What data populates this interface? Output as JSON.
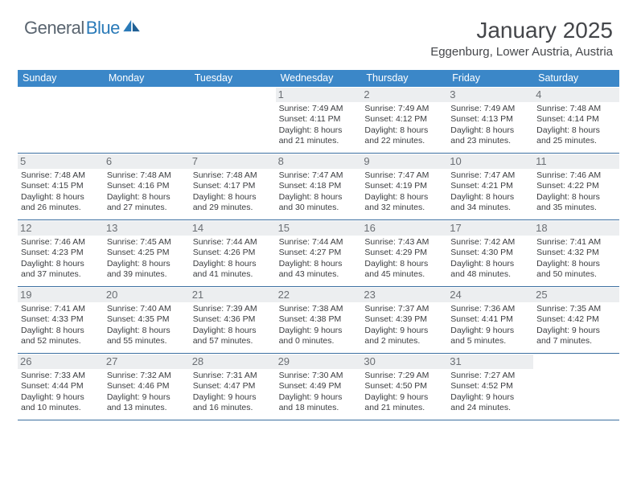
{
  "brand": {
    "name1": "General",
    "name2": "Blue",
    "color_gray": "#5a6570",
    "color_blue": "#2a7ab8"
  },
  "header": {
    "title": "January 2025",
    "location": "Eggenburg, Lower Austria, Austria"
  },
  "style": {
    "header_bg": "#3b87c8",
    "week_border": "#3b6fa0",
    "daynum_bg": "#eceef0",
    "text_color": "#3b3d40"
  },
  "day_names": [
    "Sunday",
    "Monday",
    "Tuesday",
    "Wednesday",
    "Thursday",
    "Friday",
    "Saturday"
  ],
  "weeks": [
    [
      {
        "n": "",
        "sr": "",
        "ss": "",
        "dl": ""
      },
      {
        "n": "",
        "sr": "",
        "ss": "",
        "dl": ""
      },
      {
        "n": "",
        "sr": "",
        "ss": "",
        "dl": ""
      },
      {
        "n": "1",
        "sr": "Sunrise: 7:49 AM",
        "ss": "Sunset: 4:11 PM",
        "dl": "Daylight: 8 hours and 21 minutes."
      },
      {
        "n": "2",
        "sr": "Sunrise: 7:49 AM",
        "ss": "Sunset: 4:12 PM",
        "dl": "Daylight: 8 hours and 22 minutes."
      },
      {
        "n": "3",
        "sr": "Sunrise: 7:49 AM",
        "ss": "Sunset: 4:13 PM",
        "dl": "Daylight: 8 hours and 23 minutes."
      },
      {
        "n": "4",
        "sr": "Sunrise: 7:48 AM",
        "ss": "Sunset: 4:14 PM",
        "dl": "Daylight: 8 hours and 25 minutes."
      }
    ],
    [
      {
        "n": "5",
        "sr": "Sunrise: 7:48 AM",
        "ss": "Sunset: 4:15 PM",
        "dl": "Daylight: 8 hours and 26 minutes."
      },
      {
        "n": "6",
        "sr": "Sunrise: 7:48 AM",
        "ss": "Sunset: 4:16 PM",
        "dl": "Daylight: 8 hours and 27 minutes."
      },
      {
        "n": "7",
        "sr": "Sunrise: 7:48 AM",
        "ss": "Sunset: 4:17 PM",
        "dl": "Daylight: 8 hours and 29 minutes."
      },
      {
        "n": "8",
        "sr": "Sunrise: 7:47 AM",
        "ss": "Sunset: 4:18 PM",
        "dl": "Daylight: 8 hours and 30 minutes."
      },
      {
        "n": "9",
        "sr": "Sunrise: 7:47 AM",
        "ss": "Sunset: 4:19 PM",
        "dl": "Daylight: 8 hours and 32 minutes."
      },
      {
        "n": "10",
        "sr": "Sunrise: 7:47 AM",
        "ss": "Sunset: 4:21 PM",
        "dl": "Daylight: 8 hours and 34 minutes."
      },
      {
        "n": "11",
        "sr": "Sunrise: 7:46 AM",
        "ss": "Sunset: 4:22 PM",
        "dl": "Daylight: 8 hours and 35 minutes."
      }
    ],
    [
      {
        "n": "12",
        "sr": "Sunrise: 7:46 AM",
        "ss": "Sunset: 4:23 PM",
        "dl": "Daylight: 8 hours and 37 minutes."
      },
      {
        "n": "13",
        "sr": "Sunrise: 7:45 AM",
        "ss": "Sunset: 4:25 PM",
        "dl": "Daylight: 8 hours and 39 minutes."
      },
      {
        "n": "14",
        "sr": "Sunrise: 7:44 AM",
        "ss": "Sunset: 4:26 PM",
        "dl": "Daylight: 8 hours and 41 minutes."
      },
      {
        "n": "15",
        "sr": "Sunrise: 7:44 AM",
        "ss": "Sunset: 4:27 PM",
        "dl": "Daylight: 8 hours and 43 minutes."
      },
      {
        "n": "16",
        "sr": "Sunrise: 7:43 AM",
        "ss": "Sunset: 4:29 PM",
        "dl": "Daylight: 8 hours and 45 minutes."
      },
      {
        "n": "17",
        "sr": "Sunrise: 7:42 AM",
        "ss": "Sunset: 4:30 PM",
        "dl": "Daylight: 8 hours and 48 minutes."
      },
      {
        "n": "18",
        "sr": "Sunrise: 7:41 AM",
        "ss": "Sunset: 4:32 PM",
        "dl": "Daylight: 8 hours and 50 minutes."
      }
    ],
    [
      {
        "n": "19",
        "sr": "Sunrise: 7:41 AM",
        "ss": "Sunset: 4:33 PM",
        "dl": "Daylight: 8 hours and 52 minutes."
      },
      {
        "n": "20",
        "sr": "Sunrise: 7:40 AM",
        "ss": "Sunset: 4:35 PM",
        "dl": "Daylight: 8 hours and 55 minutes."
      },
      {
        "n": "21",
        "sr": "Sunrise: 7:39 AM",
        "ss": "Sunset: 4:36 PM",
        "dl": "Daylight: 8 hours and 57 minutes."
      },
      {
        "n": "22",
        "sr": "Sunrise: 7:38 AM",
        "ss": "Sunset: 4:38 PM",
        "dl": "Daylight: 9 hours and 0 minutes."
      },
      {
        "n": "23",
        "sr": "Sunrise: 7:37 AM",
        "ss": "Sunset: 4:39 PM",
        "dl": "Daylight: 9 hours and 2 minutes."
      },
      {
        "n": "24",
        "sr": "Sunrise: 7:36 AM",
        "ss": "Sunset: 4:41 PM",
        "dl": "Daylight: 9 hours and 5 minutes."
      },
      {
        "n": "25",
        "sr": "Sunrise: 7:35 AM",
        "ss": "Sunset: 4:42 PM",
        "dl": "Daylight: 9 hours and 7 minutes."
      }
    ],
    [
      {
        "n": "26",
        "sr": "Sunrise: 7:33 AM",
        "ss": "Sunset: 4:44 PM",
        "dl": "Daylight: 9 hours and 10 minutes."
      },
      {
        "n": "27",
        "sr": "Sunrise: 7:32 AM",
        "ss": "Sunset: 4:46 PM",
        "dl": "Daylight: 9 hours and 13 minutes."
      },
      {
        "n": "28",
        "sr": "Sunrise: 7:31 AM",
        "ss": "Sunset: 4:47 PM",
        "dl": "Daylight: 9 hours and 16 minutes."
      },
      {
        "n": "29",
        "sr": "Sunrise: 7:30 AM",
        "ss": "Sunset: 4:49 PM",
        "dl": "Daylight: 9 hours and 18 minutes."
      },
      {
        "n": "30",
        "sr": "Sunrise: 7:29 AM",
        "ss": "Sunset: 4:50 PM",
        "dl": "Daylight: 9 hours and 21 minutes."
      },
      {
        "n": "31",
        "sr": "Sunrise: 7:27 AM",
        "ss": "Sunset: 4:52 PM",
        "dl": "Daylight: 9 hours and 24 minutes."
      },
      {
        "n": "",
        "sr": "",
        "ss": "",
        "dl": ""
      }
    ]
  ]
}
